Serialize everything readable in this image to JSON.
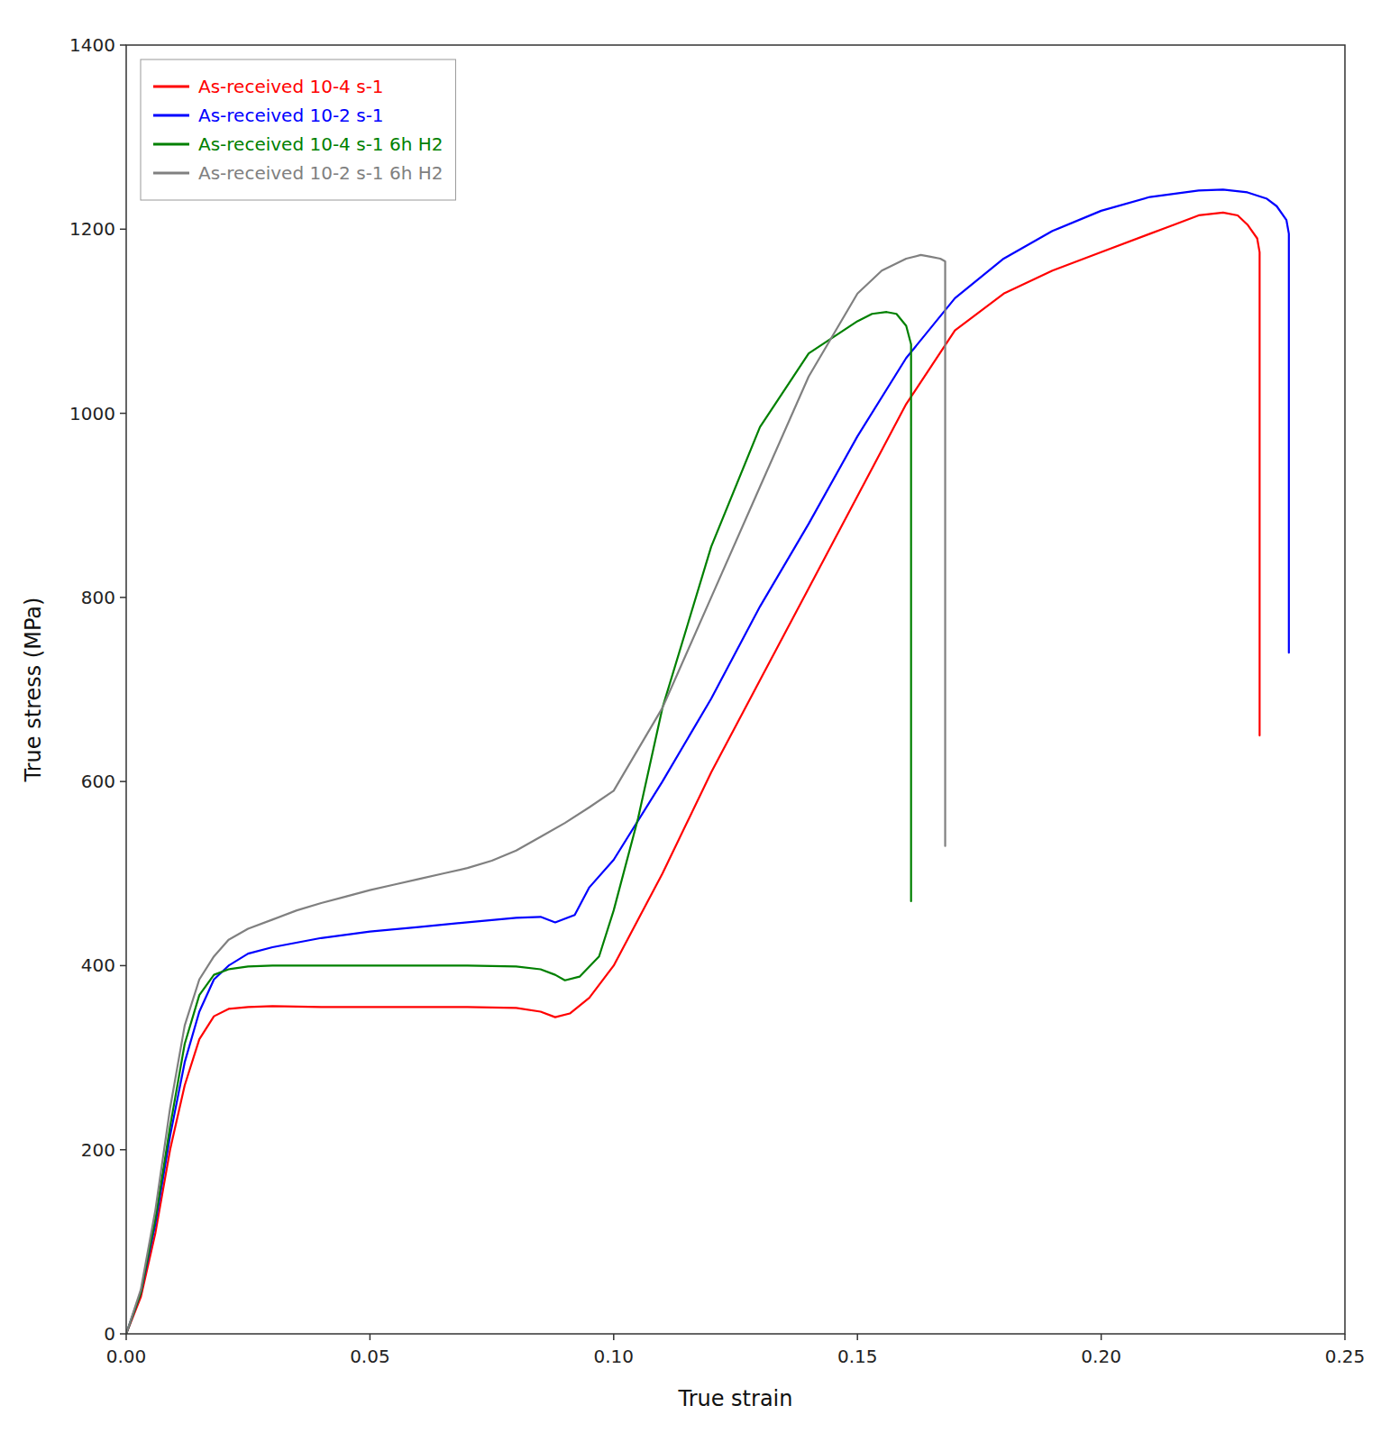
{
  "chart_data": {
    "type": "line",
    "xlabel": "True strain",
    "ylabel": "True stress (MPa)",
    "xlim": [
      0,
      0.25
    ],
    "ylim": [
      0,
      1400
    ],
    "xticks": [
      {
        "value": 0,
        "label": "0.00"
      },
      {
        "value": 0.05,
        "label": "0.05"
      },
      {
        "value": 0.1,
        "label": "0.10"
      },
      {
        "value": 0.15,
        "label": "0.15"
      },
      {
        "value": 0.2,
        "label": "0.20"
      },
      {
        "value": 0.25,
        "label": "0.25"
      }
    ],
    "yticks": [
      0,
      200,
      400,
      600,
      800,
      1000,
      1200,
      1400
    ],
    "legend": "upper left",
    "grid": false,
    "series": [
      {
        "name": "As-received 10-4 s-1",
        "color": "#ff0000",
        "x": [
          0,
          0.003,
          0.006,
          0.009,
          0.012,
          0.015,
          0.018,
          0.021,
          0.025,
          0.03,
          0.04,
          0.05,
          0.06,
          0.07,
          0.08,
          0.085,
          0.088,
          0.091,
          0.095,
          0.1,
          0.11,
          0.12,
          0.13,
          0.14,
          0.15,
          0.16,
          0.17,
          0.18,
          0.19,
          0.2,
          0.21,
          0.215,
          0.22,
          0.225,
          0.228,
          0.23,
          0.232,
          0.2325,
          0.2325
        ],
        "values": [
          0,
          40,
          110,
          200,
          270,
          320,
          345,
          353,
          355,
          356,
          355,
          355,
          355,
          355,
          354,
          350,
          344,
          348,
          365,
          400,
          500,
          610,
          710,
          810,
          910,
          1010,
          1090,
          1130,
          1155,
          1175,
          1195,
          1205,
          1215,
          1218,
          1215,
          1205,
          1190,
          1175,
          650
        ]
      },
      {
        "name": "As-received 10-2 s-1",
        "color": "#0000ff",
        "x": [
          0,
          0.003,
          0.006,
          0.009,
          0.012,
          0.015,
          0.018,
          0.021,
          0.025,
          0.03,
          0.04,
          0.05,
          0.06,
          0.07,
          0.08,
          0.085,
          0.088,
          0.092,
          0.095,
          0.1,
          0.11,
          0.12,
          0.13,
          0.14,
          0.15,
          0.16,
          0.17,
          0.18,
          0.19,
          0.2,
          0.21,
          0.22,
          0.225,
          0.23,
          0.234,
          0.236,
          0.238,
          0.2385,
          0.2385
        ],
        "values": [
          0,
          45,
          120,
          215,
          295,
          350,
          385,
          400,
          413,
          420,
          430,
          437,
          442,
          447,
          452,
          453,
          447,
          455,
          485,
          515,
          600,
          690,
          790,
          880,
          975,
          1060,
          1125,
          1168,
          1198,
          1220,
          1235,
          1242,
          1243,
          1240,
          1233,
          1225,
          1210,
          1195,
          740
        ]
      },
      {
        "name": "As-received 10-4 s-1 6h H2",
        "color": "#008000",
        "x": [
          0,
          0.003,
          0.006,
          0.009,
          0.012,
          0.015,
          0.018,
          0.021,
          0.025,
          0.03,
          0.04,
          0.05,
          0.06,
          0.07,
          0.08,
          0.085,
          0.088,
          0.09,
          0.093,
          0.097,
          0.1,
          0.105,
          0.11,
          0.12,
          0.13,
          0.14,
          0.15,
          0.153,
          0.156,
          0.158,
          0.16,
          0.161,
          0.161
        ],
        "values": [
          0,
          45,
          125,
          225,
          315,
          368,
          390,
          396,
          399,
          400,
          400,
          400,
          400,
          400,
          399,
          396,
          390,
          384,
          388,
          410,
          460,
          560,
          680,
          855,
          985,
          1065,
          1100,
          1108,
          1110,
          1108,
          1095,
          1075,
          470
        ]
      },
      {
        "name": "As-received 10-2 s-1 6h H2",
        "color": "#808080",
        "x": [
          0,
          0.003,
          0.006,
          0.009,
          0.012,
          0.015,
          0.018,
          0.021,
          0.025,
          0.03,
          0.035,
          0.04,
          0.045,
          0.05,
          0.055,
          0.06,
          0.065,
          0.07,
          0.075,
          0.08,
          0.085,
          0.09,
          0.095,
          0.1,
          0.11,
          0.12,
          0.13,
          0.14,
          0.15,
          0.155,
          0.16,
          0.163,
          0.165,
          0.167,
          0.168,
          0.168
        ],
        "values": [
          0,
          48,
          135,
          245,
          335,
          385,
          410,
          428,
          440,
          450,
          460,
          468,
          475,
          482,
          488,
          494,
          500,
          506,
          514,
          525,
          540,
          555,
          572,
          590,
          680,
          800,
          920,
          1040,
          1130,
          1155,
          1168,
          1172,
          1170,
          1168,
          1165,
          530
        ]
      }
    ]
  }
}
